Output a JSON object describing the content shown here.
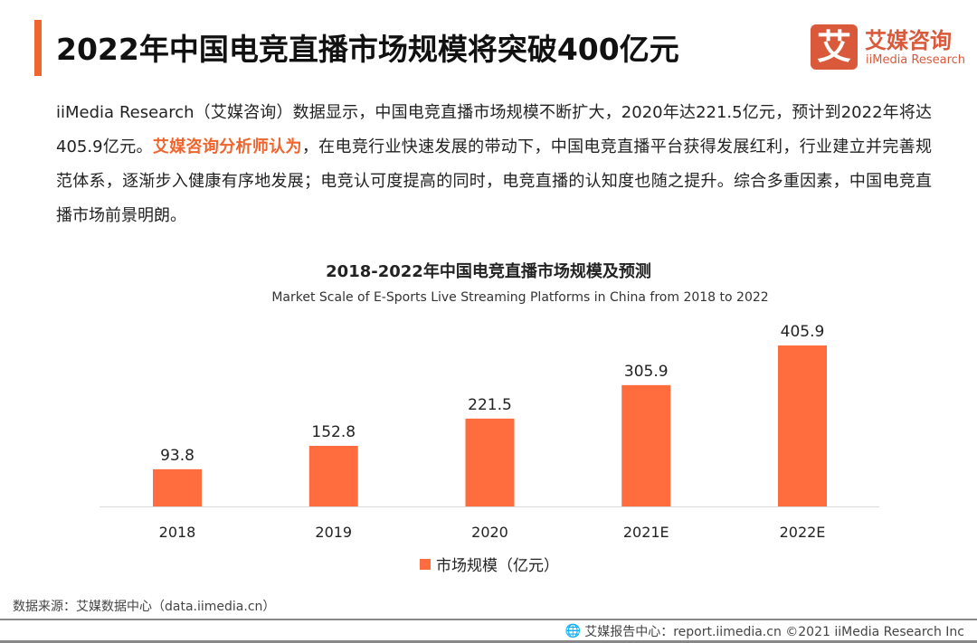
{
  "header": {
    "title": "2022年中国电竞直播市场规模将突破400亿元"
  },
  "logo": {
    "mark": "艾",
    "cn": "艾媒咨询",
    "en": "iiMedia Research"
  },
  "paragraph": {
    "part1": "iiMedia Research（艾媒咨询）数据显示，中国电竞直播市场规模不断扩大，2020年达221.5亿元，预计到2022年将达405.9亿元。",
    "highlight": "艾媒咨询分析师认为",
    "part2": "，在电竞行业快速发展的带动下，中国电竞直播平台获得发展红利，行业建立并完善规范体系，逐渐步入健康有序地发展；电竞认可度提高的同时，电竞直播的认知度也随之提升。综合多重因素，中国电竞直播市场前景明朗。"
  },
  "chart_data": {
    "type": "bar",
    "title": "2018-2022年中国电竞直播市场规模及预测",
    "subtitle": "Market Scale of E-Sports Live Streaming Platforms in China from 2018 to 2022",
    "categories": [
      "2018",
      "2019",
      "2020",
      "2021E",
      "2022E"
    ],
    "series": [
      {
        "name": "市场规模（亿元）",
        "values": [
          93.8,
          152.8,
          221.5,
          305.9,
          405.9
        ],
        "color": "#ff6d3f"
      }
    ],
    "ylim": [
      0,
      405.9
    ],
    "grid": false,
    "legend": "bottom"
  },
  "source": "数据来源：艾媒数据中心（data.iimedia.cn）",
  "footer": "艾媒报告中心：report.iimedia.cn ©2021  iiMedia Research  Inc",
  "colors": {
    "accent": "#f0642d",
    "bar": "#ff6d3f"
  }
}
